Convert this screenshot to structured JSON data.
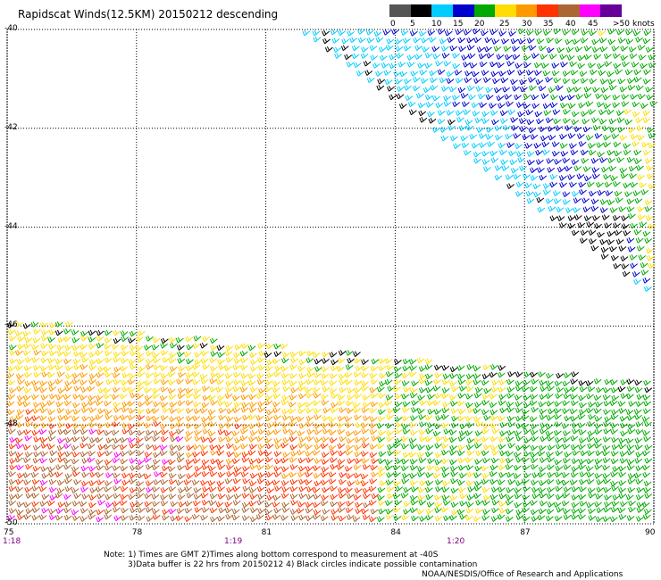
{
  "title": "Rapidscat Winds(12.5KM) 20150212 descending",
  "legend": {
    "unit_label": "knots",
    "labels": [
      "0",
      "5",
      "10",
      "15",
      "20",
      "25",
      "30",
      "35",
      "40",
      "45",
      ">50"
    ],
    "colors": [
      "#555555",
      "#000000",
      "#00ccff",
      "#0000cc",
      "#00aa00",
      "#ffdd00",
      "#ff9900",
      "#ff3300",
      "#aa6633",
      "#ff00ff",
      "#660099"
    ]
  },
  "lat_labels": [
    "-40",
    "-42",
    "-44",
    "-46",
    "-48",
    "-50"
  ],
  "lon_labels": [
    "75",
    "78",
    "81",
    "84",
    "87",
    "90"
  ],
  "time_labels": [
    "1:18",
    "1:19",
    "1:20"
  ],
  "notes": [
    "Note: 1) Times are GMT 2)Times along bottom correspond to measurement at -40S",
    "3)Data buffer is 22 hrs from 20150212 4) Black circles indicate possible contamination",
    "NOAA/NESDIS/Office of Research and Applications"
  ],
  "map": {
    "lat_range": [
      -50,
      -40
    ],
    "lon_range": [
      75,
      90
    ],
    "grid": true,
    "grid_style": "dotted"
  }
}
